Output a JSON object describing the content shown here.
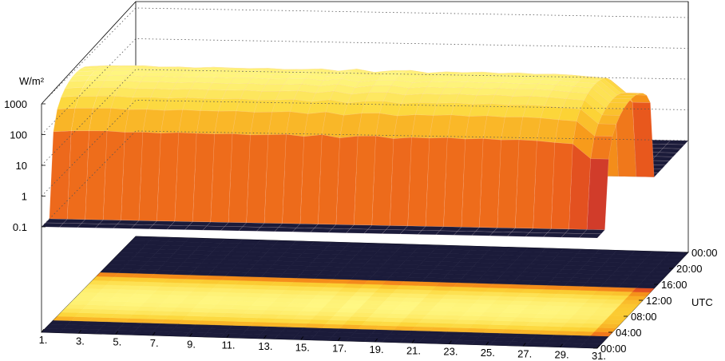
{
  "chart_data": {
    "type": "surface3d",
    "title": "",
    "z_axis": {
      "unit_label": "W/m²",
      "scale": "log",
      "range": [
        0.1,
        1000
      ],
      "ticks": [
        "1000",
        "100",
        "10",
        "1",
        "0.1"
      ]
    },
    "x_axis": {
      "label": "",
      "range": [
        1,
        31
      ],
      "ticks": [
        "1.",
        "3.",
        "5.",
        "7.",
        "9.",
        "11.",
        "13.",
        "15.",
        "17.",
        "19.",
        "21.",
        "23.",
        "25.",
        "27.",
        "29.",
        "31."
      ]
    },
    "y_axis": {
      "label": "UTC",
      "range": [
        "00:00",
        "24:00"
      ],
      "ticks": [
        "00:00",
        "04:00",
        "08:00",
        "12:00",
        "16:00",
        "20:00",
        "00:00"
      ]
    },
    "daily_peak_wm2": [
      750,
      820,
      840,
      860,
      800,
      830,
      790,
      850,
      820,
      810,
      840,
      790,
      820,
      870,
      760,
      900,
      720,
      850,
      880,
      740,
      830,
      810,
      860,
      800,
      850,
      790,
      820,
      780,
      700,
      650,
      220
    ],
    "projection": "color-mapped base contour",
    "palette": [
      "#1b1b3a",
      "#4a2c5c",
      "#8b2c4f",
      "#c7302f",
      "#ea5a1c",
      "#f79a1a",
      "#fcd436",
      "#fffb8a"
    ],
    "grid": true
  }
}
